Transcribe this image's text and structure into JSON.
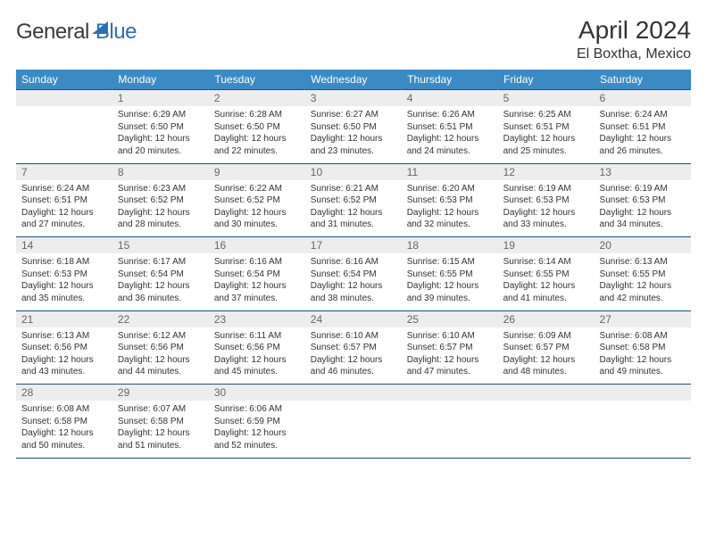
{
  "brand": {
    "part1": "General",
    "part2": "Blue"
  },
  "title": "April 2024",
  "location": "El Boxtha, Mexico",
  "colors": {
    "header_bg": "#3b8ac4",
    "header_text": "#ffffff",
    "daynum_bg": "#ededed",
    "daynum_text": "#666666",
    "rule": "#1a4e7a",
    "body_text": "#333333",
    "brand_blue": "#2d6fb5",
    "brand_gray": "#3a3a3a"
  },
  "daysOfWeek": [
    "Sunday",
    "Monday",
    "Tuesday",
    "Wednesday",
    "Thursday",
    "Friday",
    "Saturday"
  ],
  "weeks": [
    [
      {
        "num": "",
        "lines": []
      },
      {
        "num": "1",
        "lines": [
          "Sunrise: 6:29 AM",
          "Sunset: 6:50 PM",
          "Daylight: 12 hours and 20 minutes."
        ]
      },
      {
        "num": "2",
        "lines": [
          "Sunrise: 6:28 AM",
          "Sunset: 6:50 PM",
          "Daylight: 12 hours and 22 minutes."
        ]
      },
      {
        "num": "3",
        "lines": [
          "Sunrise: 6:27 AM",
          "Sunset: 6:50 PM",
          "Daylight: 12 hours and 23 minutes."
        ]
      },
      {
        "num": "4",
        "lines": [
          "Sunrise: 6:26 AM",
          "Sunset: 6:51 PM",
          "Daylight: 12 hours and 24 minutes."
        ]
      },
      {
        "num": "5",
        "lines": [
          "Sunrise: 6:25 AM",
          "Sunset: 6:51 PM",
          "Daylight: 12 hours and 25 minutes."
        ]
      },
      {
        "num": "6",
        "lines": [
          "Sunrise: 6:24 AM",
          "Sunset: 6:51 PM",
          "Daylight: 12 hours and 26 minutes."
        ]
      }
    ],
    [
      {
        "num": "7",
        "lines": [
          "Sunrise: 6:24 AM",
          "Sunset: 6:51 PM",
          "Daylight: 12 hours and 27 minutes."
        ]
      },
      {
        "num": "8",
        "lines": [
          "Sunrise: 6:23 AM",
          "Sunset: 6:52 PM",
          "Daylight: 12 hours and 28 minutes."
        ]
      },
      {
        "num": "9",
        "lines": [
          "Sunrise: 6:22 AM",
          "Sunset: 6:52 PM",
          "Daylight: 12 hours and 30 minutes."
        ]
      },
      {
        "num": "10",
        "lines": [
          "Sunrise: 6:21 AM",
          "Sunset: 6:52 PM",
          "Daylight: 12 hours and 31 minutes."
        ]
      },
      {
        "num": "11",
        "lines": [
          "Sunrise: 6:20 AM",
          "Sunset: 6:53 PM",
          "Daylight: 12 hours and 32 minutes."
        ]
      },
      {
        "num": "12",
        "lines": [
          "Sunrise: 6:19 AM",
          "Sunset: 6:53 PM",
          "Daylight: 12 hours and 33 minutes."
        ]
      },
      {
        "num": "13",
        "lines": [
          "Sunrise: 6:19 AM",
          "Sunset: 6:53 PM",
          "Daylight: 12 hours and 34 minutes."
        ]
      }
    ],
    [
      {
        "num": "14",
        "lines": [
          "Sunrise: 6:18 AM",
          "Sunset: 6:53 PM",
          "Daylight: 12 hours and 35 minutes."
        ]
      },
      {
        "num": "15",
        "lines": [
          "Sunrise: 6:17 AM",
          "Sunset: 6:54 PM",
          "Daylight: 12 hours and 36 minutes."
        ]
      },
      {
        "num": "16",
        "lines": [
          "Sunrise: 6:16 AM",
          "Sunset: 6:54 PM",
          "Daylight: 12 hours and 37 minutes."
        ]
      },
      {
        "num": "17",
        "lines": [
          "Sunrise: 6:16 AM",
          "Sunset: 6:54 PM",
          "Daylight: 12 hours and 38 minutes."
        ]
      },
      {
        "num": "18",
        "lines": [
          "Sunrise: 6:15 AM",
          "Sunset: 6:55 PM",
          "Daylight: 12 hours and 39 minutes."
        ]
      },
      {
        "num": "19",
        "lines": [
          "Sunrise: 6:14 AM",
          "Sunset: 6:55 PM",
          "Daylight: 12 hours and 41 minutes."
        ]
      },
      {
        "num": "20",
        "lines": [
          "Sunrise: 6:13 AM",
          "Sunset: 6:55 PM",
          "Daylight: 12 hours and 42 minutes."
        ]
      }
    ],
    [
      {
        "num": "21",
        "lines": [
          "Sunrise: 6:13 AM",
          "Sunset: 6:56 PM",
          "Daylight: 12 hours and 43 minutes."
        ]
      },
      {
        "num": "22",
        "lines": [
          "Sunrise: 6:12 AM",
          "Sunset: 6:56 PM",
          "Daylight: 12 hours and 44 minutes."
        ]
      },
      {
        "num": "23",
        "lines": [
          "Sunrise: 6:11 AM",
          "Sunset: 6:56 PM",
          "Daylight: 12 hours and 45 minutes."
        ]
      },
      {
        "num": "24",
        "lines": [
          "Sunrise: 6:10 AM",
          "Sunset: 6:57 PM",
          "Daylight: 12 hours and 46 minutes."
        ]
      },
      {
        "num": "25",
        "lines": [
          "Sunrise: 6:10 AM",
          "Sunset: 6:57 PM",
          "Daylight: 12 hours and 47 minutes."
        ]
      },
      {
        "num": "26",
        "lines": [
          "Sunrise: 6:09 AM",
          "Sunset: 6:57 PM",
          "Daylight: 12 hours and 48 minutes."
        ]
      },
      {
        "num": "27",
        "lines": [
          "Sunrise: 6:08 AM",
          "Sunset: 6:58 PM",
          "Daylight: 12 hours and 49 minutes."
        ]
      }
    ],
    [
      {
        "num": "28",
        "lines": [
          "Sunrise: 6:08 AM",
          "Sunset: 6:58 PM",
          "Daylight: 12 hours and 50 minutes."
        ]
      },
      {
        "num": "29",
        "lines": [
          "Sunrise: 6:07 AM",
          "Sunset: 6:58 PM",
          "Daylight: 12 hours and 51 minutes."
        ]
      },
      {
        "num": "30",
        "lines": [
          "Sunrise: 6:06 AM",
          "Sunset: 6:59 PM",
          "Daylight: 12 hours and 52 minutes."
        ]
      },
      {
        "num": "",
        "lines": []
      },
      {
        "num": "",
        "lines": []
      },
      {
        "num": "",
        "lines": []
      },
      {
        "num": "",
        "lines": []
      }
    ]
  ]
}
